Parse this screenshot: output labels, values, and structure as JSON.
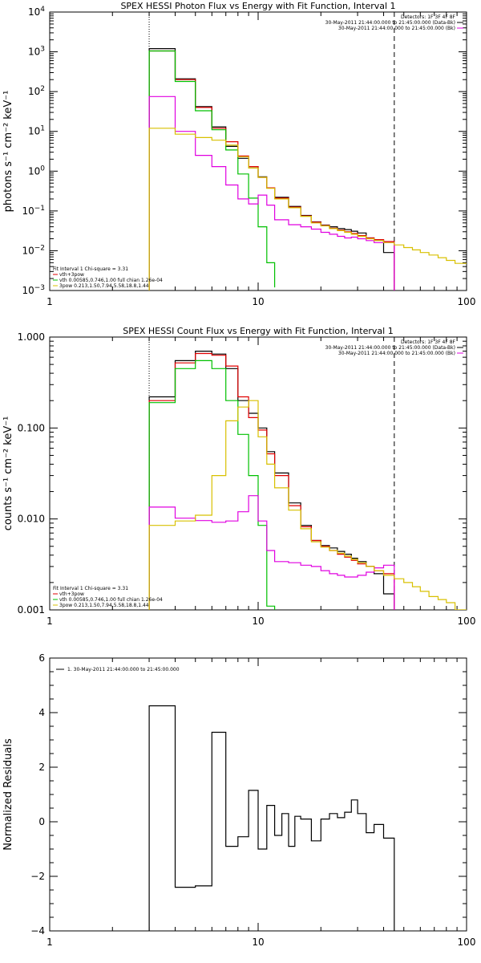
{
  "chart_data": [
    {
      "type": "line",
      "title": "SPEX HESSI Photon Flux vs Energy with Fit Function, Interval 1",
      "ylabel": "photons s⁻¹ cm⁻² keV⁻¹",
      "xlabel": "",
      "x_scale": "log",
      "y_scale": "log",
      "xlim": [
        1,
        100
      ],
      "ylim": [
        0.001,
        10000
      ],
      "x_ticks": [
        {
          "v": 1,
          "label": "1"
        },
        {
          "v": 10,
          "label": "10"
        },
        {
          "v": 100,
          "label": "100"
        }
      ],
      "y_ticks": [
        {
          "v": 0.001,
          "base": "10",
          "exp": "−3"
        },
        {
          "v": 0.01,
          "base": "10",
          "exp": "−2"
        },
        {
          "v": 0.1,
          "base": "10",
          "exp": "−1"
        },
        {
          "v": 1,
          "base": "10",
          "exp": "0"
        },
        {
          "v": 10,
          "base": "10",
          "exp": "1"
        },
        {
          "v": 100,
          "base": "10",
          "exp": "2"
        },
        {
          "v": 1000,
          "base": "10",
          "exp": "3"
        },
        {
          "v": 10000,
          "base": "10",
          "exp": "4"
        }
      ],
      "vlines": [
        {
          "x": 3.0,
          "style": "dotted"
        },
        {
          "x": 45.0,
          "style": "dashed"
        }
      ],
      "legend_top": [
        {
          "text": "Detectors: 1F 3F 4F 8F",
          "color": "#000000"
        },
        {
          "text": "30-May-2011 21:44:00.000 to 21:45:00.000 (Data-Bk)",
          "color": "#000000"
        },
        {
          "text": "30-May-2011 21:44:00.000 to 21:45:00.000 (Bk)",
          "color": "#e000e0"
        }
      ],
      "legend_bottom": [
        {
          "text": "Fit Interval 1    Chi-square = 3.31",
          "color": "#000000"
        },
        {
          "text": "vth+3pow",
          "color": "#e00000"
        },
        {
          "text": "vth 0.00585,0.746,1.00   full chian 1.26e-04",
          "color": "#00c000"
        },
        {
          "text": "3pow 0.213,1.50,7.94,5.58,18.8,1.44",
          "color": "#d8c000"
        }
      ],
      "series": [
        {
          "color": "#000000",
          "edges": [
            3.0,
            4.0,
            5.0,
            6.0,
            7.0,
            8.0,
            9.0,
            10.0,
            11.0,
            12.0,
            14.0,
            16.0,
            18.0,
            20.0,
            22.0,
            24.0,
            26.0,
            28.0,
            30.0,
            33.0,
            36.0,
            40.0,
            45.0
          ],
          "values": [
            1200,
            210,
            42,
            13,
            4.2,
            2.1,
            1.3,
            0.72,
            0.38,
            0.22,
            0.13,
            0.077,
            0.053,
            0.044,
            0.04,
            0.036,
            0.034,
            0.031,
            0.028,
            0.021,
            0.019,
            0.009
          ]
        },
        {
          "color": "#e00000",
          "edges": [
            3.0,
            4.0,
            5.0,
            6.0,
            7.0,
            8.0,
            9.0,
            10.0,
            11.0,
            12.0,
            14.0,
            16.0,
            18.0,
            20.0,
            22.0,
            24.0,
            26.0,
            28.0,
            30.0,
            33.0,
            36.0,
            40.0,
            45.0
          ],
          "values": [
            1050,
            200,
            40,
            12,
            5.5,
            2.4,
            1.3,
            0.7,
            0.38,
            0.21,
            0.125,
            0.075,
            0.052,
            0.043,
            0.037,
            0.033,
            0.03,
            0.027,
            0.024,
            0.021,
            0.019,
            0.017
          ]
        },
        {
          "color": "#00c000",
          "edges": [
            3.0,
            4.0,
            5.0,
            6.0,
            7.0,
            8.0,
            9.0,
            10.0,
            11.0,
            12.0
          ],
          "values": [
            1050,
            180,
            33,
            11,
            3.4,
            0.85,
            0.21,
            0.04,
            0.005,
            0.0012
          ]
        },
        {
          "color": "#e000e0",
          "edges": [
            3.0,
            4.0,
            5.0,
            6.0,
            7.0,
            8.0,
            9.0,
            10.0,
            11.0,
            12.0,
            14.0,
            16.0,
            18.0,
            20.0,
            22.0,
            24.0,
            26.0,
            28.0,
            30.0,
            33.0,
            36.0,
            40.0,
            45.0
          ],
          "values": [
            75,
            10,
            2.5,
            1.3,
            0.45,
            0.2,
            0.15,
            0.25,
            0.14,
            0.06,
            0.045,
            0.04,
            0.035,
            0.029,
            0.026,
            0.023,
            0.021,
            0.022,
            0.02,
            0.018,
            0.016,
            0.016
          ]
        },
        {
          "color": "#d8c000",
          "edges": [
            3.0,
            4.0,
            5.0,
            6.0,
            7.0,
            8.0,
            9.0,
            10.0,
            11.0,
            12.0,
            14.0,
            16.0,
            18.0,
            20.0,
            22.0,
            24.0,
            26.0,
            28.0,
            30.0,
            33.0,
            36.0,
            40.0,
            45.0,
            50.0,
            55.0,
            60.0,
            66.0,
            73.0,
            80.0,
            88.0,
            100.0
          ],
          "values": [
            12,
            8.5,
            7.0,
            6.0,
            4.5,
            2.3,
            1.2,
            0.7,
            0.37,
            0.2,
            0.12,
            0.073,
            0.05,
            0.042,
            0.036,
            0.032,
            0.029,
            0.026,
            0.023,
            0.02,
            0.018,
            0.016,
            0.014,
            0.012,
            0.0105,
            0.009,
            0.0078,
            0.0067,
            0.0057,
            0.0048
          ]
        }
      ]
    },
    {
      "type": "line",
      "title": "SPEX HESSI Count Flux vs Energy with Fit Function, Interval 1",
      "ylabel": "counts s⁻¹ cm⁻² keV⁻¹",
      "xlabel": "",
      "x_scale": "log",
      "y_scale": "log",
      "xlim": [
        1,
        100
      ],
      "ylim": [
        0.001,
        1.0
      ],
      "x_ticks": [
        {
          "v": 1,
          "label": "1"
        },
        {
          "v": 10,
          "label": "10"
        },
        {
          "v": 100,
          "label": "100"
        }
      ],
      "y_ticks": [
        {
          "v": 0.001,
          "label": "0.001"
        },
        {
          "v": 0.01,
          "label": "0.010"
        },
        {
          "v": 0.1,
          "label": "0.100"
        },
        {
          "v": 1.0,
          "label": "1.000"
        }
      ],
      "vlines": [
        {
          "x": 3.0,
          "style": "dotted"
        },
        {
          "x": 45.0,
          "style": "dashed"
        }
      ],
      "legend_top": [
        {
          "text": "Detectors: 1F 3F 4F 8F",
          "color": "#000000"
        },
        {
          "text": "30-May-2011 21:44:00.000 to 21:45:00.000 (Data-Bk)",
          "color": "#000000"
        },
        {
          "text": "30-May-2011 21:44:00.000 to 21:45:00.000 (Bk)",
          "color": "#e000e0"
        }
      ],
      "legend_bottom": [
        {
          "text": "Fit Interval 1    Chi-square = 3.31",
          "color": "#000000"
        },
        {
          "text": "vth+3pow",
          "color": "#e00000"
        },
        {
          "text": "vth 0.00585,0.746,1.00   full chian 1.26e-04",
          "color": "#00c000"
        },
        {
          "text": "3pow 0.213,1.50,7.94,5.58,18.8,1.44",
          "color": "#d8c000"
        }
      ],
      "series": [
        {
          "color": "#000000",
          "edges": [
            3.0,
            4.0,
            5.0,
            6.0,
            7.0,
            8.0,
            9.0,
            10.0,
            11.0,
            12.0,
            14.0,
            16.0,
            18.0,
            20.0,
            22.0,
            24.0,
            26.0,
            28.0,
            30.0,
            33.0,
            36.0,
            40.0,
            45.0
          ],
          "values": [
            0.22,
            0.55,
            0.7,
            0.65,
            0.45,
            0.2,
            0.145,
            0.1,
            0.055,
            0.032,
            0.015,
            0.0085,
            0.0058,
            0.0051,
            0.0048,
            0.0044,
            0.0041,
            0.0037,
            0.0034,
            0.003,
            0.0025,
            0.0015
          ]
        },
        {
          "color": "#e00000",
          "edges": [
            3.0,
            4.0,
            5.0,
            6.0,
            7.0,
            8.0,
            9.0,
            10.0,
            11.0,
            12.0,
            14.0,
            16.0,
            18.0,
            20.0,
            22.0,
            24.0,
            26.0,
            28.0,
            30.0,
            33.0,
            36.0,
            40.0,
            45.0
          ],
          "values": [
            0.2,
            0.52,
            0.66,
            0.63,
            0.48,
            0.22,
            0.13,
            0.095,
            0.052,
            0.03,
            0.014,
            0.0082,
            0.0058,
            0.005,
            0.0045,
            0.0041,
            0.0038,
            0.0035,
            0.0032,
            0.003,
            0.0027,
            0.0025
          ]
        },
        {
          "color": "#00c000",
          "edges": [
            3.0,
            4.0,
            5.0,
            6.0,
            7.0,
            8.0,
            9.0,
            10.0,
            11.0,
            12.0
          ],
          "values": [
            0.19,
            0.45,
            0.55,
            0.45,
            0.2,
            0.085,
            0.03,
            0.0085,
            0.0011,
            0.0009
          ]
        },
        {
          "color": "#e000e0",
          "edges": [
            3.0,
            4.0,
            5.0,
            6.0,
            7.0,
            8.0,
            9.0,
            10.0,
            11.0,
            12.0,
            14.0,
            16.0,
            18.0,
            20.0,
            22.0,
            24.0,
            26.0,
            28.0,
            30.0,
            33.0,
            36.0,
            40.0,
            45.0
          ],
          "values": [
            0.0135,
            0.0102,
            0.0096,
            0.0092,
            0.0095,
            0.012,
            0.018,
            0.0095,
            0.0045,
            0.0034,
            0.0033,
            0.0031,
            0.003,
            0.0027,
            0.0025,
            0.0024,
            0.0023,
            0.0023,
            0.0024,
            0.0026,
            0.0029,
            0.0031
          ]
        },
        {
          "color": "#d8c000",
          "edges": [
            3.0,
            4.0,
            5.0,
            6.0,
            7.0,
            8.0,
            9.0,
            10.0,
            11.0,
            12.0,
            14.0,
            16.0,
            18.0,
            20.0,
            22.0,
            24.0,
            26.0,
            28.0,
            30.0,
            33.0,
            36.0,
            40.0,
            45.0,
            50.0,
            55.0,
            60.0,
            66.0,
            73.0,
            80.0,
            88.0,
            100.0
          ],
          "values": [
            0.0085,
            0.0095,
            0.011,
            0.03,
            0.12,
            0.17,
            0.2,
            0.08,
            0.04,
            0.022,
            0.0125,
            0.0078,
            0.0056,
            0.0049,
            0.0045,
            0.0042,
            0.0039,
            0.0036,
            0.0033,
            0.003,
            0.0027,
            0.0024,
            0.0022,
            0.002,
            0.0018,
            0.0016,
            0.0014,
            0.0013,
            0.0012,
            0.001
          ]
        }
      ]
    },
    {
      "type": "line",
      "title": "",
      "ylabel": "Normalized Residuals",
      "xlabel": "",
      "x_scale": "log",
      "y_scale": "linear",
      "xlim": [
        1,
        100
      ],
      "ylim": [
        -4,
        6
      ],
      "x_ticks": [
        {
          "v": 1,
          "label": "1"
        },
        {
          "v": 10,
          "label": "10"
        },
        {
          "v": 100,
          "label": "100"
        }
      ],
      "y_ticks": [
        {
          "v": -4,
          "label": "−4"
        },
        {
          "v": -2,
          "label": "−2"
        },
        {
          "v": 0,
          "label": "0"
        },
        {
          "v": 2,
          "label": "2"
        },
        {
          "v": 4,
          "label": "4"
        },
        {
          "v": 6,
          "label": "6"
        }
      ],
      "y_minor_step": 0.5,
      "vlines": [],
      "legend_top": [],
      "legend_bottom": [],
      "legend_inner": [
        {
          "text": "1. 30-May-2011 21:44:00.000 to 21:45:00.000",
          "color": "#000000"
        }
      ],
      "series": [
        {
          "color": "#000000",
          "edges": [
            3.0,
            4.0,
            5.0,
            6.0,
            7.0,
            8.0,
            9.0,
            10.0,
            11.0,
            12.0,
            13.0,
            14.0,
            15.0,
            16.0,
            18.0,
            20.0,
            22.0,
            24.0,
            26.0,
            28.0,
            30.0,
            33.0,
            36.0,
            40.0,
            45.0
          ],
          "values": [
            4.25,
            -2.4,
            -2.35,
            3.28,
            -0.9,
            -0.55,
            1.15,
            -1.0,
            0.6,
            -0.5,
            0.3,
            -0.9,
            0.2,
            0.1,
            -0.7,
            0.1,
            0.3,
            0.15,
            0.35,
            0.8,
            0.3,
            -0.4,
            -0.1,
            -0.6
          ]
        }
      ]
    }
  ]
}
